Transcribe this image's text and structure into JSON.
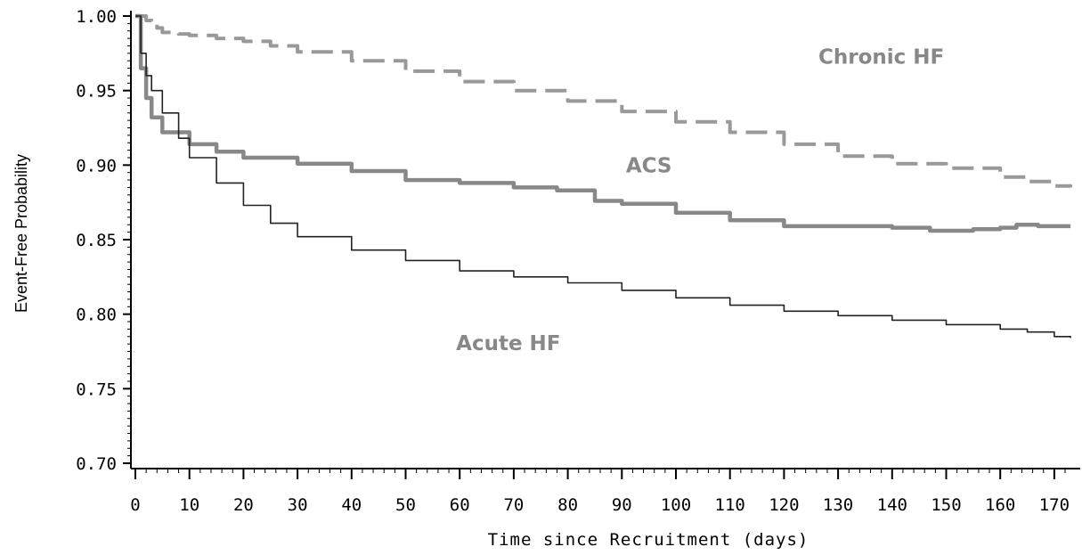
{
  "chart_data": {
    "type": "line",
    "xlabel": "Time since Recruitment (days)",
    "ylabel": "Event-Free Probability",
    "xlim": [
      -1,
      173
    ],
    "ylim": [
      0.7,
      1.0
    ],
    "x_ticks": [
      0,
      10,
      20,
      30,
      40,
      50,
      60,
      70,
      80,
      90,
      100,
      110,
      120,
      130,
      140,
      150,
      160,
      170
    ],
    "x_tick_labels": [
      "0",
      "10",
      "20",
      "30",
      "40",
      "50",
      "60",
      "70",
      "80",
      "90",
      "100",
      "110",
      "120",
      "130",
      "140",
      "150",
      "160",
      "170"
    ],
    "y_ticks": [
      0.7,
      0.75,
      0.8,
      0.85,
      0.9,
      0.95,
      1.0
    ],
    "y_tick_labels": [
      "0.70",
      "0.75",
      "0.80",
      "0.85",
      "0.90",
      "0.95",
      "1.00"
    ],
    "series": [
      {
        "name": "Chronic HF",
        "style": "dashed",
        "color": "#999999",
        "x": [
          0,
          2,
          3,
          4,
          5,
          8,
          10,
          15,
          20,
          25,
          30,
          40,
          50,
          60,
          70,
          80,
          90,
          100,
          110,
          120,
          130,
          140,
          150,
          160,
          165,
          170,
          173
        ],
        "y": [
          1.0,
          0.997,
          0.995,
          0.992,
          0.989,
          0.988,
          0.987,
          0.985,
          0.983,
          0.98,
          0.976,
          0.97,
          0.963,
          0.956,
          0.95,
          0.943,
          0.936,
          0.929,
          0.922,
          0.914,
          0.906,
          0.901,
          0.898,
          0.892,
          0.889,
          0.886,
          0.885
        ]
      },
      {
        "name": "ACS",
        "style": "solid",
        "color": "#888888",
        "x": [
          0,
          1,
          2,
          3,
          5,
          10,
          15,
          20,
          30,
          40,
          50,
          60,
          70,
          78,
          85,
          90,
          100,
          110,
          120,
          130,
          140,
          147,
          155,
          160,
          163,
          167,
          173
        ],
        "y": [
          1.0,
          0.965,
          0.945,
          0.932,
          0.922,
          0.914,
          0.909,
          0.905,
          0.901,
          0.896,
          0.89,
          0.888,
          0.885,
          0.883,
          0.876,
          0.874,
          0.868,
          0.863,
          0.859,
          0.859,
          0.858,
          0.856,
          0.857,
          0.858,
          0.86,
          0.859,
          0.859
        ]
      },
      {
        "name": "Acute HF",
        "style": "solid",
        "color": "#222222",
        "x": [
          0,
          1,
          2,
          3,
          5,
          8,
          10,
          15,
          20,
          25,
          30,
          40,
          50,
          60,
          70,
          80,
          90,
          100,
          110,
          120,
          130,
          140,
          150,
          160,
          165,
          170,
          173
        ],
        "y": [
          1.0,
          0.975,
          0.96,
          0.95,
          0.935,
          0.918,
          0.905,
          0.888,
          0.873,
          0.861,
          0.852,
          0.843,
          0.836,
          0.829,
          0.825,
          0.821,
          0.816,
          0.811,
          0.806,
          0.802,
          0.799,
          0.796,
          0.793,
          0.79,
          0.788,
          0.785,
          0.784
        ]
      }
    ],
    "annotations": [
      {
        "text": "Chronic HF",
        "series": "Chronic HF",
        "x": 138,
        "y": 0.968
      },
      {
        "text": "ACS",
        "series": "ACS",
        "x": 95,
        "y": 0.895
      },
      {
        "text": "Acute HF",
        "series": "Acute HF",
        "x": 69,
        "y": 0.776
      }
    ],
    "grid": false,
    "legend": "none"
  }
}
